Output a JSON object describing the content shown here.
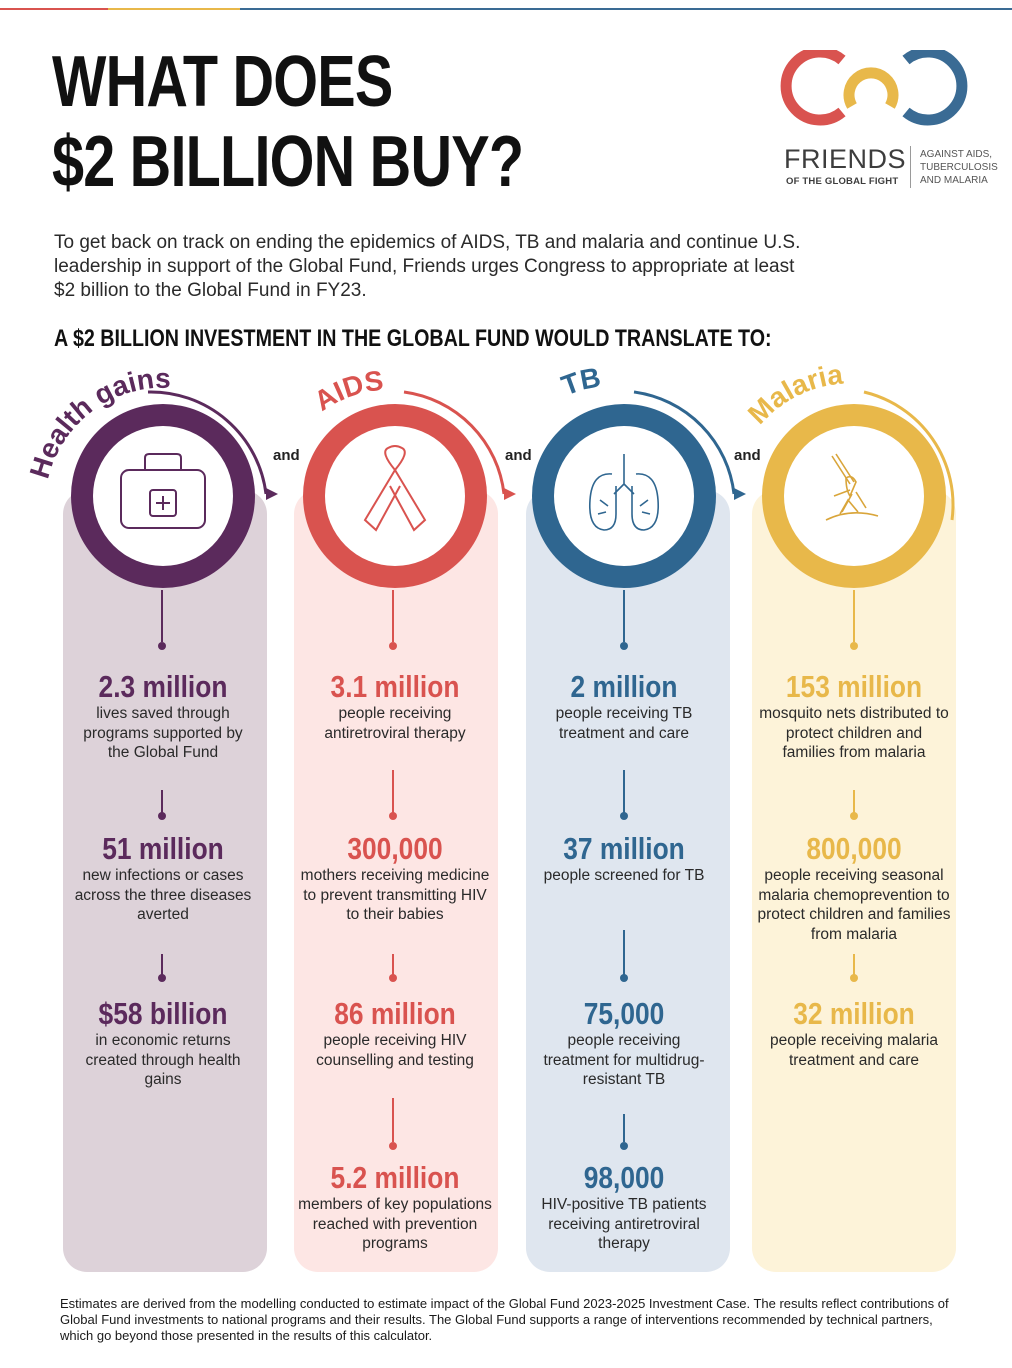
{
  "header": {
    "title_line1": "WHAT DOES",
    "title_line2": "$2 BILLION BUY?",
    "intro": "To get back on track on ending the epidemics of AIDS, TB and malaria and continue U.S. leadership in support of the Global Fund, Friends urges Congress to appropriate at least $2 billion to the Global Fund in FY23.",
    "subhead": "A $2 BILLION INVESTMENT IN THE GLOBAL FUND WOULD TRANSLATE TO:"
  },
  "logo": {
    "name": "FRIENDS",
    "sub": "OF THE GLOBAL FIGHT",
    "tag_line1": "AGAINST AIDS,",
    "tag_line2": "TUBERCULOSIS",
    "tag_line3": "AND MALARIA"
  },
  "connector": "and",
  "colors": {
    "health": "#5b2a5c",
    "aids": "#d9534f",
    "tb": "#2f6690",
    "malaria": "#e8b84a"
  },
  "columns": [
    {
      "label": "Health gains",
      "icon": "medical-kit-icon",
      "stats": [
        {
          "value": "2.3 million",
          "desc": "lives saved through programs supported by the Global Fund"
        },
        {
          "value": "51 million",
          "desc": "new infections or cases across the three diseases averted"
        },
        {
          "value": "$58 billion",
          "desc": "in economic returns created through health gains"
        }
      ]
    },
    {
      "label": "AIDS",
      "icon": "ribbon-icon",
      "stats": [
        {
          "value": "3.1 million",
          "desc": "people receiving antiretroviral therapy"
        },
        {
          "value": "300,000",
          "desc": "mothers receiving medicine to prevent transmitting HIV to their babies"
        },
        {
          "value": "86 million",
          "desc": "people receiving HIV counselling and testing"
        },
        {
          "value": "5.2 million",
          "desc": "members of key populations reached with prevention programs"
        }
      ]
    },
    {
      "label": "TB",
      "icon": "lungs-icon",
      "stats": [
        {
          "value": "2 million",
          "desc": "people receiving TB treatment and care"
        },
        {
          "value": "37 million",
          "desc": "people screened for TB"
        },
        {
          "value": "75,000",
          "desc": "people receiving treatment for multidrug-resistant TB"
        },
        {
          "value": "98,000",
          "desc": "HIV-positive TB patients receiving antiretroviral therapy"
        }
      ]
    },
    {
      "label": "Malaria",
      "icon": "mosquito-icon",
      "stats": [
        {
          "value": "153 million",
          "desc": "mosquito nets distributed to protect children and families from malaria"
        },
        {
          "value": "800,000",
          "desc": "people receiving seasonal malaria chemoprevention to protect children and families from malaria"
        },
        {
          "value": "32 million",
          "desc": "people receiving malaria treatment and care"
        }
      ]
    }
  ],
  "footnote": "Estimates are derived from the modelling conducted to estimate impact of the Global Fund 2023-2025 Investment Case. The results reflect contributions of Global Fund investments to national programs and their results. The Global Fund supports a range of interventions recommended by technical partners, which go beyond those presented in the results of this calculator."
}
